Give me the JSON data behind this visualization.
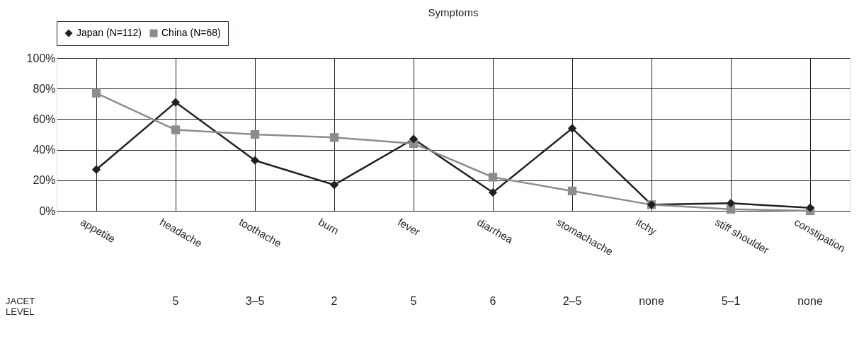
{
  "chart_data": {
    "type": "line",
    "title": "Symptoms",
    "categories": [
      "appetite",
      "headache",
      "toothache",
      "burn",
      "fever",
      "diarrhea",
      "stomachache",
      "itchy",
      "stiff shoulder",
      "constipation"
    ],
    "series": [
      {
        "name": "Japan (N=112)",
        "color": "#231f20",
        "marker": "diamond",
        "values": [
          27,
          71,
          33,
          17,
          47,
          12,
          54,
          4,
          5,
          2
        ]
      },
      {
        "name": "China (N=68)",
        "color": "#8c8c8c",
        "marker": "square",
        "values": [
          77,
          53,
          50,
          48,
          44,
          22,
          13,
          4,
          1,
          0
        ]
      }
    ],
    "ylim": [
      0,
      100
    ],
    "yticks": [
      {
        "value": 0,
        "label": "0%"
      },
      {
        "value": 20,
        "label": "20%"
      },
      {
        "value": 40,
        "label": "40%"
      },
      {
        "value": 60,
        "label": "60%"
      },
      {
        "value": 80,
        "label": "80%"
      },
      {
        "value": 100,
        "label": "100%"
      }
    ],
    "grid": true,
    "legend": "top",
    "line_style": "solid",
    "annotations": [
      "JACET LEVEL",
      "5",
      "3–5",
      "2",
      "5",
      "6",
      "2–5",
      "none",
      "5–1",
      "none"
    ]
  }
}
